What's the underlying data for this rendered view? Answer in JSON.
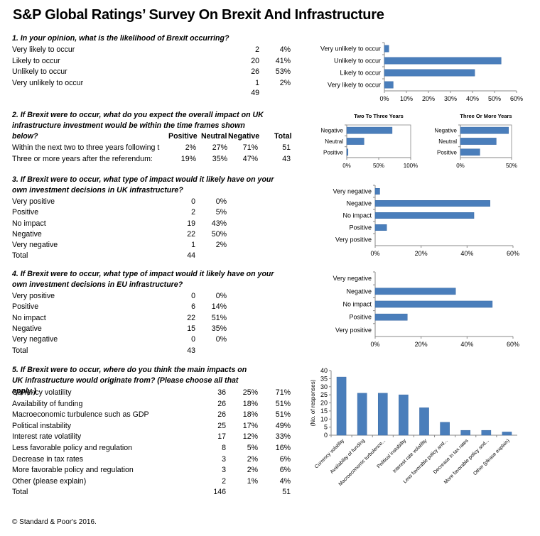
{
  "title": "S&P Global Ratings’ Survey On Brexit And Infrastructure",
  "footer": "© Standard & Poor's 2016.",
  "q1": {
    "question": "1. In your opinion, what is the likelihood of Brexit occurring?",
    "rows": [
      {
        "label": "Very likely to occur",
        "count": "2",
        "pct": "4%"
      },
      {
        "label": "Likely to occur",
        "count": "20",
        "pct": "41%"
      },
      {
        "label": "Unlikely to occur",
        "count": "26",
        "pct": "53%"
      },
      {
        "label": "Very unlikely to occur",
        "count": "1",
        "pct": "2%"
      }
    ],
    "total": "49"
  },
  "q2": {
    "question": "2. If Brexit were to occur, what do you expect the overall impact on UK infrastructure investment would be within the time frames shown below?",
    "headers": [
      "Positive",
      "Neutral",
      "Negative",
      "Total"
    ],
    "rows": [
      {
        "label": "Within the next two to three years following t",
        "positive": "2%",
        "neutral": "27%",
        "negative": "71%",
        "total": "51"
      },
      {
        "label": "Three or more years after the referendum:",
        "positive": "19%",
        "neutral": "35%",
        "negative": "47%",
        "total": "43"
      }
    ]
  },
  "q3": {
    "question": "3. If Brexit were to occur, what type of impact would it likely have on your own investment decisions in UK infrastructure?",
    "rows": [
      {
        "label": "Very positive",
        "count": "0",
        "pct": "0%"
      },
      {
        "label": "Positive",
        "count": "2",
        "pct": "5%"
      },
      {
        "label": "No impact",
        "count": "19",
        "pct": "43%"
      },
      {
        "label": "Negative",
        "count": "22",
        "pct": "50%"
      },
      {
        "label": "Very negative",
        "count": "1",
        "pct": "2%"
      }
    ],
    "total_label": "Total",
    "total": "44"
  },
  "q4": {
    "question": "4. If Brexit were to occur, what type of impact would it likely have on your own investment decisions in EU infrastructure?",
    "rows": [
      {
        "label": "Very positive",
        "count": "0",
        "pct": "0%"
      },
      {
        "label": "Positive",
        "count": "6",
        "pct": "14%"
      },
      {
        "label": "No impact",
        "count": "22",
        "pct": "51%"
      },
      {
        "label": "Negative",
        "count": "15",
        "pct": "35%"
      },
      {
        "label": "Very negative",
        "count": "0",
        "pct": "0%"
      }
    ],
    "total_label": "Total",
    "total": "43"
  },
  "q5": {
    "question": "5. If Brexit were to occur, where do you think the main impacts on UK infrastructure would originate from? (Please choose all that apply.)",
    "rows": [
      {
        "label": "Currency volatility",
        "count": "36",
        "pct1": "25%",
        "pct2": "71%"
      },
      {
        "label": "Availability of funding",
        "count": "26",
        "pct1": "18%",
        "pct2": "51%"
      },
      {
        "label": "Macroeconomic turbulence such as GDP",
        "count": "26",
        "pct1": "18%",
        "pct2": "51%"
      },
      {
        "label": "Political instability",
        "count": "25",
        "pct1": "17%",
        "pct2": "49%"
      },
      {
        "label": "Interest rate volatility",
        "count": "17",
        "pct1": "12%",
        "pct2": "33%"
      },
      {
        "label": "Less favorable policy and regulation",
        "count": "8",
        "pct1": "5%",
        "pct2": "16%"
      },
      {
        "label": "Decrease in tax rates",
        "count": "3",
        "pct1": "2%",
        "pct2": "6%"
      },
      {
        "label": "More favorable policy and regulation",
        "count": "3",
        "pct1": "2%",
        "pct2": "6%"
      },
      {
        "label": "Other (please explain)",
        "count": "2",
        "pct1": "1%",
        "pct2": "4%"
      }
    ],
    "total_label": "Total",
    "total": "146",
    "total2": "51"
  },
  "colors": {
    "bar": "#4a7ebb",
    "bar_edge": "#3a6aa5",
    "axis": "#888888",
    "grid": "#cccccc"
  },
  "chart_data": [
    {
      "type": "bar",
      "orientation": "horizontal",
      "categories": [
        "Very unlikely to occur",
        "Unlikely to occur",
        "Likely to occur",
        "Very likely to occur"
      ],
      "values": [
        2,
        53,
        41,
        4
      ],
      "xticks": [
        "0%",
        "10%",
        "20%",
        "30%",
        "40%",
        "50%",
        "60%"
      ],
      "xlim": [
        0,
        60
      ]
    },
    {
      "type": "bar",
      "orientation": "horizontal",
      "title": "Two To Three Years",
      "categories": [
        "Negative",
        "Neutral",
        "Positive"
      ],
      "values": [
        71,
        27,
        2
      ],
      "xticks": [
        "0%",
        "50%",
        "100%"
      ],
      "xlim": [
        0,
        100
      ]
    },
    {
      "type": "bar",
      "orientation": "horizontal",
      "title": "Three Or More Years",
      "categories": [
        "Negative",
        "Neutral",
        "Positive"
      ],
      "values": [
        47,
        35,
        19
      ],
      "xticks": [
        "0%",
        "50%"
      ],
      "xlim": [
        0,
        50
      ]
    },
    {
      "type": "bar",
      "orientation": "horizontal",
      "categories": [
        "Very negative",
        "Negative",
        "No impact",
        "Positive",
        "Very positive"
      ],
      "values": [
        2,
        50,
        43,
        5,
        0
      ],
      "xticks": [
        "0%",
        "20%",
        "40%",
        "60%"
      ],
      "xlim": [
        0,
        60
      ]
    },
    {
      "type": "bar",
      "orientation": "horizontal",
      "categories": [
        "Very negative",
        "Negative",
        "No impact",
        "Positive",
        "Very positive"
      ],
      "values": [
        0,
        35,
        51,
        14,
        0
      ],
      "xticks": [
        "0%",
        "20%",
        "40%",
        "60%"
      ],
      "xlim": [
        0,
        60
      ]
    },
    {
      "type": "bar",
      "orientation": "vertical",
      "ylabel": "(No. of responses)",
      "categories": [
        "Currency volatility",
        "Availability of funding",
        "Macroeconomic turbulence...",
        "Political instability",
        "Interest rate volatility",
        "Less favorable policy and...",
        "Decrease in tax rates",
        "More favorable policy and...",
        "Other (please explain)"
      ],
      "values": [
        36,
        26,
        26,
        25,
        17,
        8,
        3,
        3,
        2
      ],
      "yticks": [
        "0",
        "5",
        "10",
        "15",
        "20",
        "25",
        "30",
        "35",
        "40"
      ],
      "ylim": [
        0,
        40
      ]
    }
  ]
}
